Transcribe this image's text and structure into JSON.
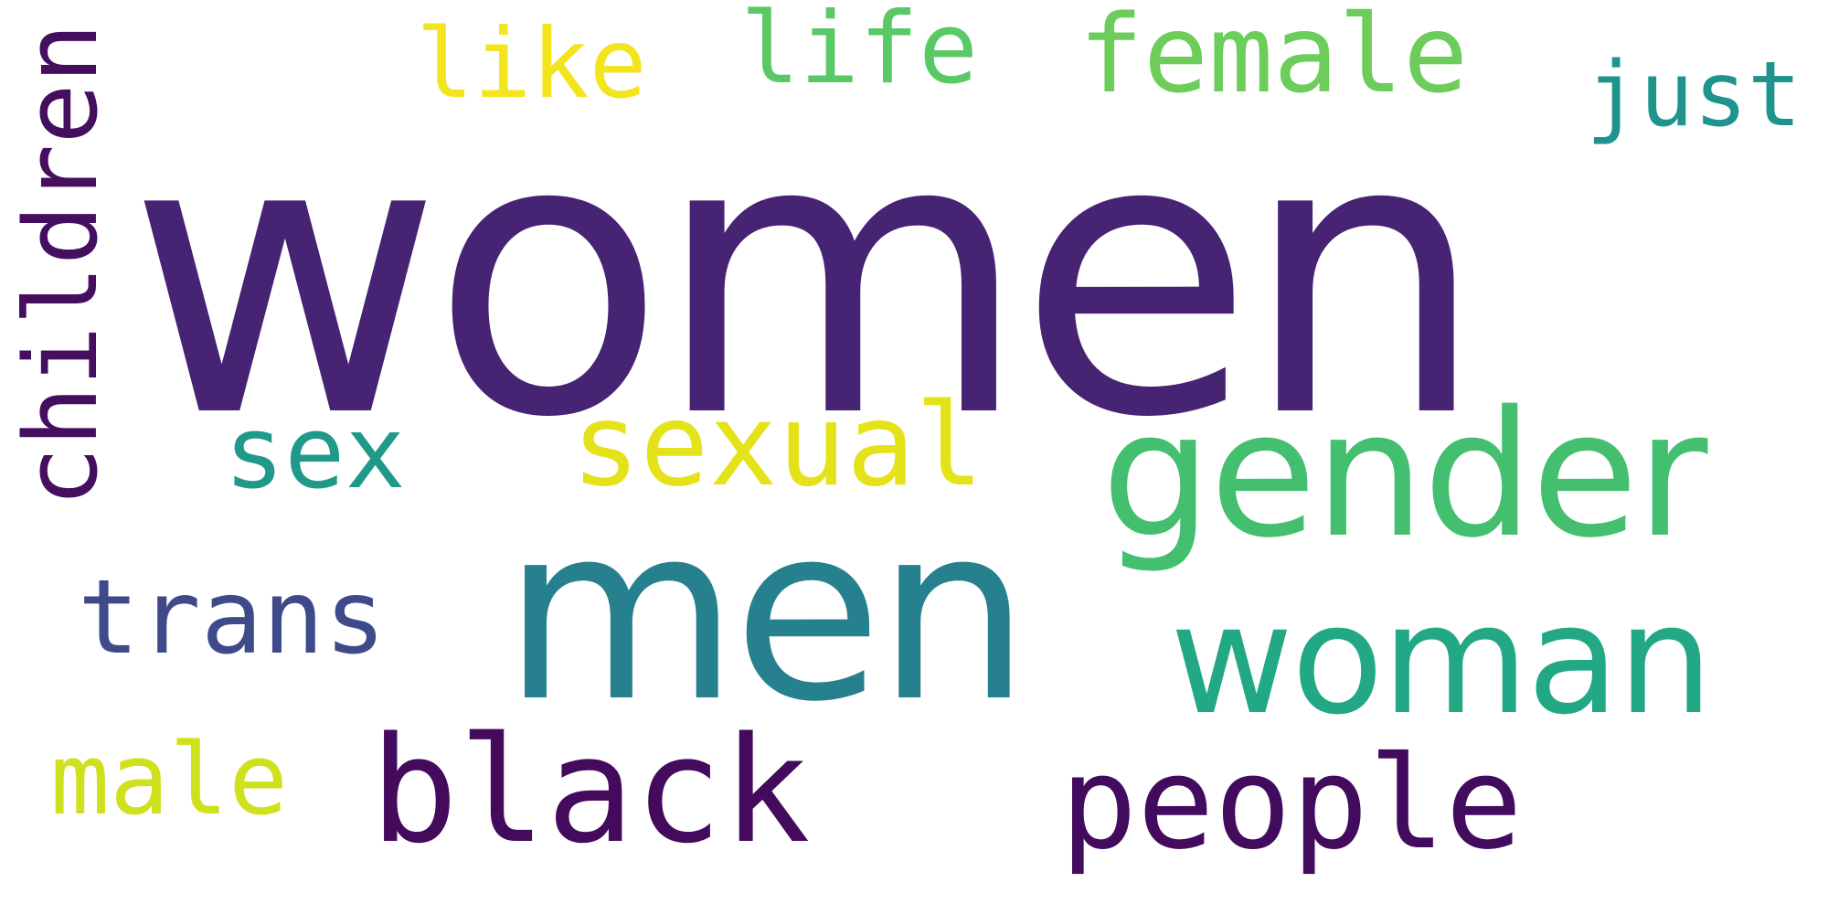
{
  "words": {
    "women": {
      "text": "women",
      "color": "#472374"
    },
    "men": {
      "text": "men",
      "color": "#27808e"
    },
    "gender": {
      "text": "gender",
      "color": "#44bf70"
    },
    "woman": {
      "text": "woman",
      "color": "#22a884"
    },
    "black": {
      "text": "black",
      "color": "#440a5c"
    },
    "people": {
      "text": "people",
      "color": "#430b5e"
    },
    "sexual": {
      "text": "sexual",
      "color": "#e4e319"
    },
    "sex": {
      "text": "sex",
      "color": "#1f9a8a"
    },
    "trans": {
      "text": "trans",
      "color": "#3f4a8a"
    },
    "male": {
      "text": "male",
      "color": "#cfe11c"
    },
    "female": {
      "text": "female",
      "color": "#6ccd5a"
    },
    "life": {
      "text": "life",
      "color": "#5ac864"
    },
    "like": {
      "text": "like",
      "color": "#f2e51d"
    },
    "just": {
      "text": "just",
      "color": "#1f948c"
    },
    "children": {
      "text": "children",
      "color": "#450e5f"
    }
  }
}
